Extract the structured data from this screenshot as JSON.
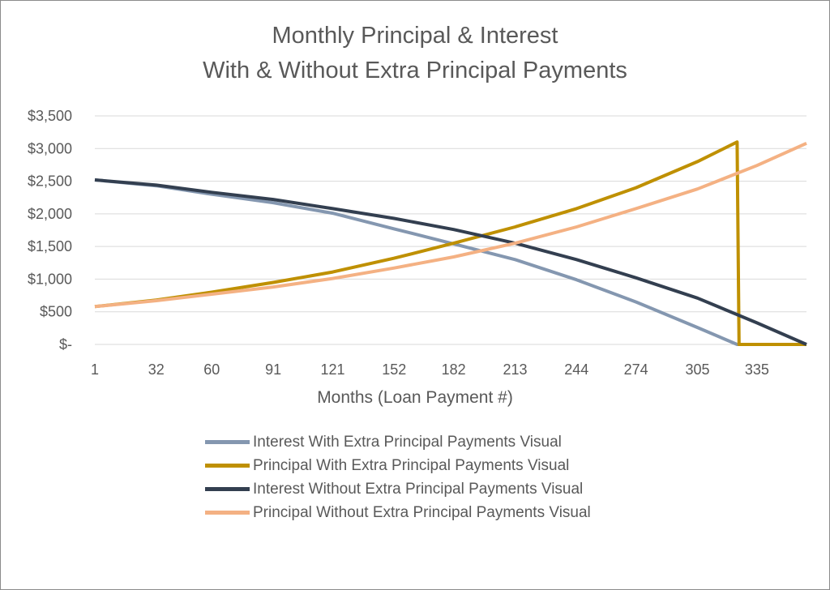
{
  "chart_data": {
    "type": "line",
    "title_line1": "Monthly Principal & Interest",
    "title_line2": "With & Without Extra Principal Payments",
    "xlabel": "Months (Loan Payment #)",
    "ylabel": "",
    "ylim": [
      0,
      3500
    ],
    "y_ticks": [
      0,
      500,
      1000,
      1500,
      2000,
      2500,
      3000,
      3500
    ],
    "y_tick_labels": [
      "$-",
      "$500",
      "$1,000",
      "$1,500",
      "$2,000",
      "$2,500",
      "$3,000",
      "$3,500"
    ],
    "xlim": [
      1,
      360
    ],
    "x_ticks": [
      1,
      32,
      60,
      91,
      121,
      152,
      182,
      213,
      244,
      274,
      305,
      335
    ],
    "x_tick_labels": [
      "1",
      "32",
      "60",
      "91",
      "121",
      "152",
      "182",
      "213",
      "244",
      "274",
      "305",
      "335"
    ],
    "grid": "horizontal",
    "legend_position": "bottom",
    "series": [
      {
        "name": "Interest With Extra Principal Payments Visual",
        "color": "#8497b0",
        "x": [
          1,
          32,
          60,
          91,
          121,
          152,
          182,
          213,
          244,
          274,
          305,
          325,
          326,
          360
        ],
        "y": [
          2520,
          2430,
          2300,
          2170,
          2010,
          1770,
          1540,
          1300,
          990,
          650,
          260,
          0,
          0,
          0
        ]
      },
      {
        "name": "Principal With Extra Principal Payments Visual",
        "color": "#bf9000",
        "x": [
          1,
          32,
          60,
          91,
          121,
          152,
          182,
          213,
          244,
          274,
          305,
          325,
          326,
          360
        ],
        "y": [
          580,
          680,
          800,
          950,
          1110,
          1320,
          1550,
          1800,
          2080,
          2400,
          2800,
          3100,
          0,
          0
        ]
      },
      {
        "name": "Interest Without Extra Principal Payments Visual",
        "color": "#333f50",
        "x": [
          1,
          32,
          60,
          91,
          121,
          152,
          182,
          213,
          244,
          274,
          305,
          335,
          360
        ],
        "y": [
          2520,
          2440,
          2330,
          2220,
          2080,
          1930,
          1760,
          1550,
          1300,
          1020,
          710,
          330,
          0
        ]
      },
      {
        "name": "Principal Without Extra Principal Payments Visual",
        "color": "#f4b183",
        "x": [
          1,
          32,
          60,
          91,
          121,
          152,
          182,
          213,
          244,
          274,
          305,
          335,
          360
        ],
        "y": [
          580,
          670,
          770,
          880,
          1010,
          1170,
          1340,
          1550,
          1800,
          2080,
          2380,
          2740,
          3080
        ]
      }
    ]
  }
}
